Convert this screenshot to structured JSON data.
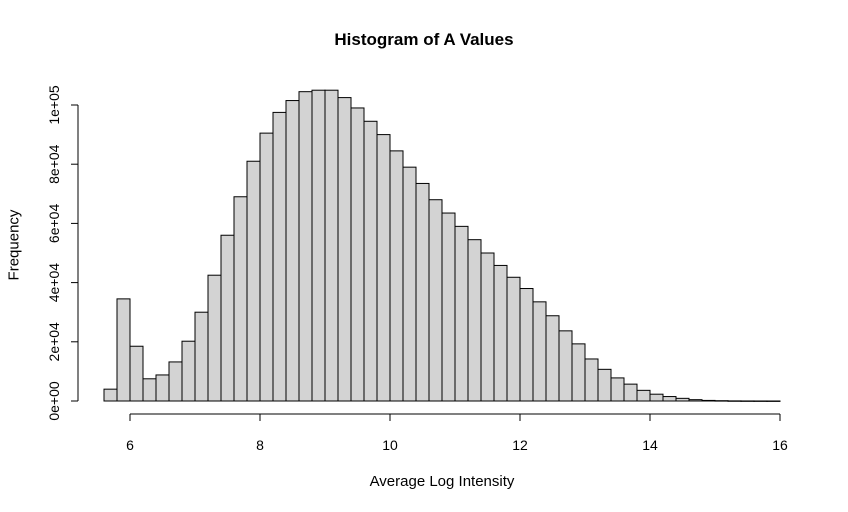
{
  "chart_data": {
    "type": "bar",
    "title": "Histogram of A Values",
    "xlabel": "Average Log Intensity",
    "ylabel": "Frequency",
    "xlim": [
      5.5,
      16
    ],
    "ylim": [
      0,
      105000
    ],
    "bin_width": 0.2,
    "bin_starts": [
      5.6,
      5.8,
      6.0,
      6.2,
      6.4,
      6.6,
      6.8,
      7.0,
      7.2,
      7.4,
      7.6,
      7.8,
      8.0,
      8.2,
      8.4,
      8.6,
      8.8,
      9.0,
      9.2,
      9.4,
      9.6,
      9.8,
      10.0,
      10.2,
      10.4,
      10.6,
      10.8,
      11.0,
      11.2,
      11.4,
      11.6,
      11.8,
      12.0,
      12.2,
      12.4,
      12.6,
      12.8,
      13.0,
      13.2,
      13.4,
      13.6,
      13.8,
      14.0,
      14.2,
      14.4,
      14.6,
      14.8,
      15.0,
      15.2,
      15.4,
      15.6,
      15.8
    ],
    "values": [
      4000,
      34500,
      18500,
      7500,
      8800,
      13200,
      20200,
      30000,
      42500,
      56000,
      69000,
      81000,
      90500,
      97500,
      101500,
      104500,
      105000,
      105000,
      102500,
      99000,
      94500,
      90000,
      84500,
      79000,
      73500,
      68000,
      63500,
      59000,
      54500,
      50000,
      45800,
      41800,
      38000,
      33500,
      28800,
      23700,
      19300,
      14200,
      10700,
      7800,
      5700,
      3600,
      2300,
      1500,
      900,
      450,
      200,
      100,
      40,
      20,
      10,
      5
    ],
    "x_ticks": [
      6,
      8,
      10,
      12,
      14,
      16
    ],
    "x_tick_labels": [
      "6",
      "8",
      "10",
      "12",
      "14",
      "16"
    ],
    "y_ticks": [
      0,
      20000,
      40000,
      60000,
      80000,
      100000
    ],
    "y_tick_labels": [
      "0e+00",
      "2e+04",
      "4e+04",
      "6e+04",
      "8e+04",
      "1e+05"
    ],
    "bar_fill": "#d3d3d3",
    "bar_stroke": "#000000",
    "grid": false,
    "legend": "none"
  }
}
